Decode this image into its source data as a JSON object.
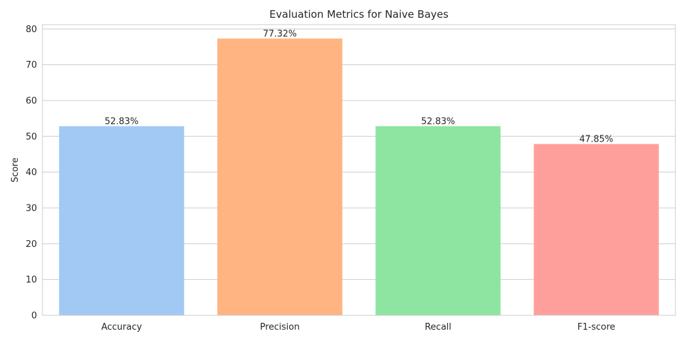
{
  "chart_data": {
    "type": "bar",
    "title": "Evaluation Metrics for Naive Bayes",
    "xlabel": "",
    "ylabel": "Score",
    "categories": [
      "Accuracy",
      "Precision",
      "Recall",
      "F1-score"
    ],
    "values": [
      52.83,
      77.32,
      52.83,
      47.85
    ],
    "data_labels": [
      "52.83%",
      "77.32%",
      "52.83%",
      "47.85%"
    ],
    "colors": [
      "#a1c9f4",
      "#ffb482",
      "#8de5a1",
      "#ff9f9b"
    ],
    "ylim": [
      0,
      81.2
    ],
    "yticks": [
      0,
      10,
      20,
      30,
      40,
      50,
      60,
      70,
      80
    ],
    "grid": true
  }
}
